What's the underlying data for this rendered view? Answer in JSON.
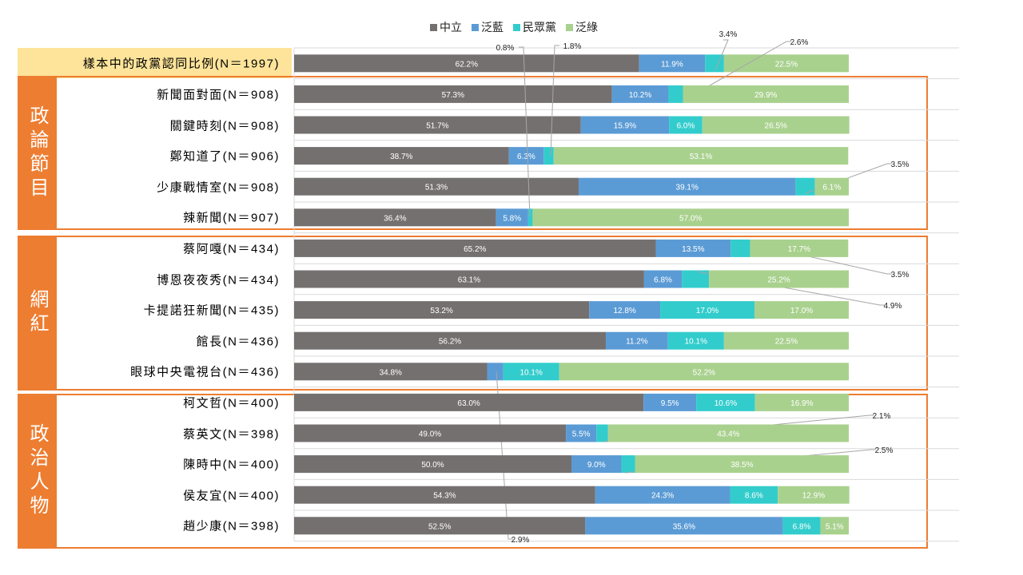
{
  "chart_data": {
    "type": "bar",
    "orientation": "horizontal",
    "stacked": "100%",
    "title": "",
    "xlabel": "",
    "ylabel": "",
    "xlim": [
      0,
      100
    ],
    "grid": true,
    "legend_position": "top",
    "series": [
      {
        "name": "中立",
        "color": "#757070",
        "values": [
          62.2,
          57.3,
          51.7,
          38.7,
          51.3,
          36.4,
          65.2,
          63.1,
          53.2,
          56.2,
          34.8,
          63.0,
          49.0,
          50.0,
          54.3,
          52.5
        ]
      },
      {
        "name": "泛藍",
        "color": "#5b9bd5",
        "values": [
          11.9,
          10.2,
          15.9,
          6.3,
          39.1,
          5.8,
          13.5,
          6.8,
          12.8,
          11.2,
          2.9,
          9.5,
          5.5,
          9.0,
          24.3,
          35.6
        ]
      },
      {
        "name": "民眾黨",
        "color": "#33cccc",
        "values": [
          3.4,
          2.6,
          6.0,
          1.8,
          3.5,
          0.8,
          3.5,
          4.9,
          17.0,
          10.1,
          10.1,
          10.6,
          2.1,
          2.5,
          8.6,
          6.8
        ]
      },
      {
        "name": "泛綠",
        "color": "#a9d18e",
        "values": [
          22.5,
          29.9,
          26.5,
          53.1,
          6.1,
          57.0,
          17.7,
          25.2,
          17.0,
          22.5,
          52.2,
          16.9,
          43.4,
          38.5,
          12.9,
          5.1
        ]
      }
    ],
    "categories": [
      "樣本中的政黨認同比例(N＝1997)",
      "新聞面對面(N＝908)",
      "關鍵時刻(N＝908)",
      "鄭知道了(N＝906)",
      "少康戰情室(N＝908)",
      "辣新聞(N＝907)",
      "蔡阿嘎(N＝434)",
      "博恩夜夜秀(N＝434)",
      "卡提諾狂新聞(N＝435)",
      "館長(N＝436)",
      "眼球中央電視台(N＝436)",
      "柯文哲(N＝400)",
      "蔡英文(N＝398)",
      "陳時中(N＝400)",
      "侯友宜(N＝400)",
      "趙少康(N＝398)"
    ],
    "groups": [
      {
        "label": "政論節目"
      },
      {
        "label": "網紅"
      },
      {
        "label": "政治人物"
      }
    ]
  }
}
